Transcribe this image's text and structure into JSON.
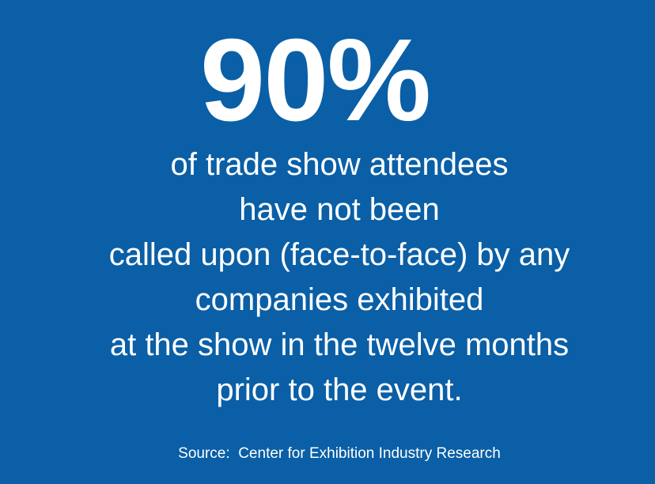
{
  "colors": {
    "background": "#0a5fa6",
    "text": "#ffffff"
  },
  "stat": {
    "value": "90%"
  },
  "statement": {
    "lines": [
      "of trade show attendees",
      "have not been",
      "called upon (face-to-face) by any",
      "companies exhibited",
      "at the show in the twelve months",
      "prior to the event."
    ]
  },
  "source": {
    "text": "Source:  Center for Exhibition Industry Research"
  }
}
